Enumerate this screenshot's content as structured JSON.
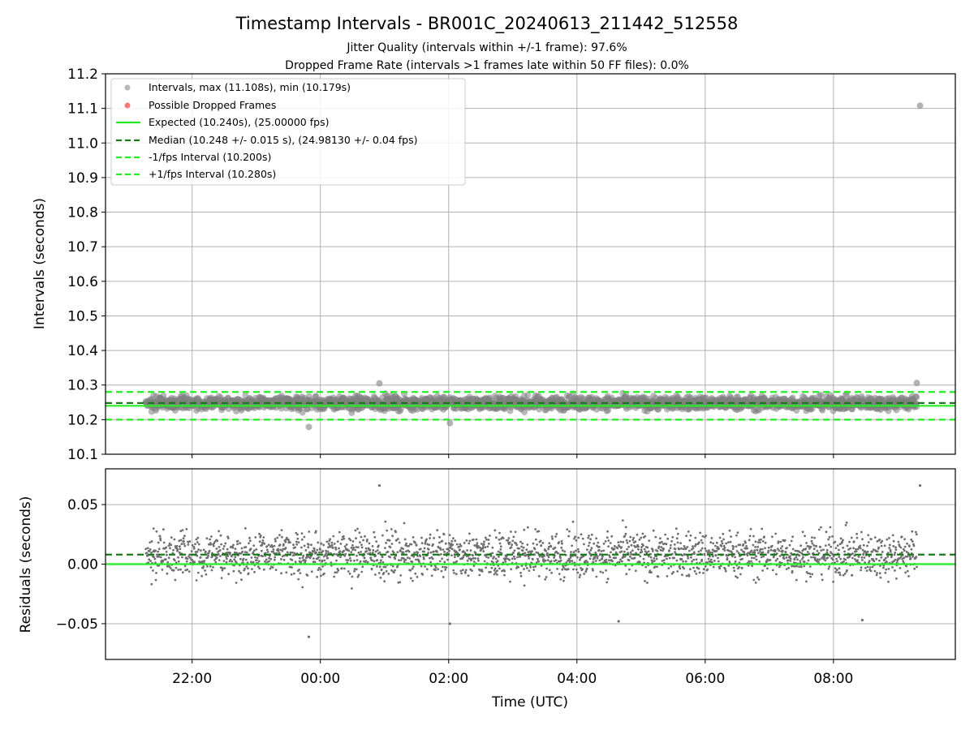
{
  "chart_data": [
    {
      "type": "scatter",
      "title": "Timestamp Intervals - BR001C_20240613_211442_512558",
      "subtitle_lines": [
        "Jitter Quality (intervals within +/-1 frame): 97.6%",
        "Dropped Frame Rate (intervals >1 frames late within 50 FF files): 0.0%"
      ],
      "ylabel": "Intervals (seconds)",
      "ylim": [
        10.1,
        11.2
      ],
      "yticks": [
        "10.1",
        "10.2",
        "10.3",
        "10.4",
        "10.5",
        "10.6",
        "10.7",
        "10.8",
        "10.9",
        "11.0",
        "11.1",
        "11.2"
      ],
      "grid": true,
      "legend_position": "top-left",
      "legend": [
        {
          "label": "Intervals, max (11.108s), min (10.179s)",
          "kind": "marker",
          "color": "#808080"
        },
        {
          "label": "Possible Dropped Frames",
          "kind": "marker",
          "color": "#ff5555"
        },
        {
          "label": "Expected (10.240s), (25.00000 fps)",
          "kind": "solid",
          "color": "#22ee22"
        },
        {
          "label": "Median (10.248 +/- 0.015 s), (24.98130 +/- 0.04 fps)",
          "kind": "dashed",
          "color": "#1a7a1a"
        },
        {
          "label": "-1/fps Interval (10.200s)",
          "kind": "dashed",
          "color": "#22ee22"
        },
        {
          "label": "+1/fps Interval (10.280s)",
          "kind": "dashed",
          "color": "#22ee22"
        }
      ],
      "reference_lines": {
        "expected": 10.24,
        "median": 10.248,
        "minus_one_frame": 10.2,
        "plus_one_frame": 10.28
      },
      "x_range_hours": [
        20.65,
        33.9
      ],
      "data_span_hours": [
        21.28,
        33.3
      ],
      "max_interval": 11.108,
      "min_interval": 10.179,
      "outliers": [
        {
          "t_hours": 33.35,
          "interval": 11.108
        },
        {
          "t_hours": 23.82,
          "interval": 10.179
        },
        {
          "t_hours": 26.02,
          "interval": 10.19
        },
        {
          "t_hours": 24.92,
          "interval": 10.305
        },
        {
          "t_hours": 33.3,
          "interval": 10.306
        }
      ],
      "series_color": "#808080"
    },
    {
      "type": "scatter",
      "ylabel": "Residuals (seconds)",
      "ylim": [
        -0.08,
        0.08
      ],
      "yticks": [
        "−0.05",
        "0.00",
        "0.05"
      ],
      "grid": true,
      "reference_lines": {
        "expected": 0.0,
        "median": 0.008
      },
      "xlabel": "Time (UTC)",
      "xticks": [
        "22:00",
        "00:00",
        "02:00",
        "04:00",
        "06:00",
        "08:00"
      ],
      "xtick_hours": [
        22,
        24,
        26,
        28,
        30,
        32
      ],
      "residual_spread": [
        -0.035,
        0.045
      ],
      "extremes": [
        {
          "t_hours": 33.35,
          "residual": 0.066
        },
        {
          "t_hours": 24.92,
          "residual": 0.066
        },
        {
          "t_hours": 23.82,
          "residual": -0.061
        },
        {
          "t_hours": 26.02,
          "residual": -0.05
        },
        {
          "t_hours": 28.65,
          "residual": -0.048
        },
        {
          "t_hours": 32.45,
          "residual": -0.047
        }
      ],
      "series_color": "#6f6f6f"
    }
  ],
  "colors": {
    "expected": "#22ee22",
    "median": "#1a7a1a",
    "grid": "#b0b0b0",
    "points": "#808080"
  }
}
